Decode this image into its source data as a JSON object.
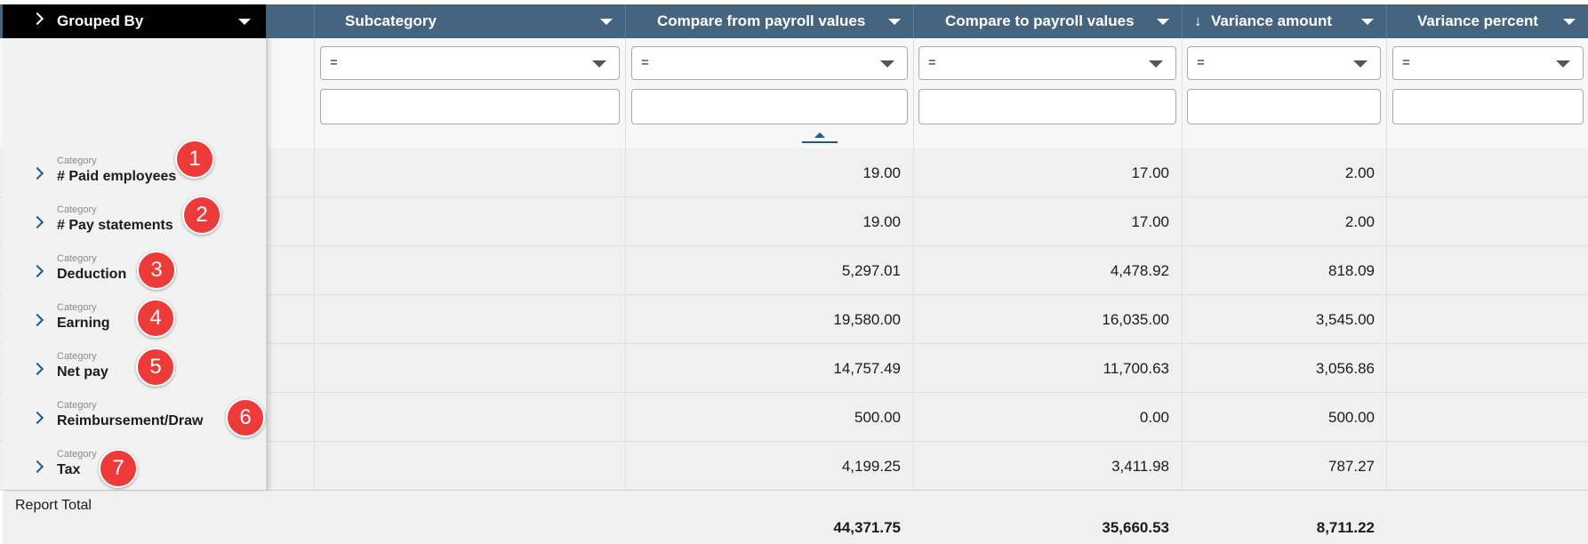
{
  "header": {
    "grouped_by": "Grouped By",
    "columns": [
      "Subcategory",
      "Compare from payroll values",
      "Compare to payroll values",
      "Variance amount",
      "Variance percent"
    ],
    "sort_arrow": "↓"
  },
  "filters": {
    "operator": "="
  },
  "rows": [
    {
      "caption": "Category",
      "name": "# Paid employees",
      "badge": "1",
      "from": "19.00",
      "to": "17.00",
      "variance": "2.00"
    },
    {
      "caption": "Category",
      "name": "# Pay statements",
      "badge": "2",
      "from": "19.00",
      "to": "17.00",
      "variance": "2.00"
    },
    {
      "caption": "Category",
      "name": "Deduction",
      "badge": "3",
      "from": "5,297.01",
      "to": "4,478.92",
      "variance": "818.09"
    },
    {
      "caption": "Category",
      "name": "Earning",
      "badge": "4",
      "from": "19,580.00",
      "to": "16,035.00",
      "variance": "3,545.00"
    },
    {
      "caption": "Category",
      "name": "Net pay",
      "badge": "5",
      "from": "14,757.49",
      "to": "11,700.63",
      "variance": "3,056.86"
    },
    {
      "caption": "Category",
      "name": "Reimbursement/Draw",
      "badge": "6",
      "from": "500.00",
      "to": "0.00",
      "variance": "500.00"
    },
    {
      "caption": "Category",
      "name": "Tax",
      "badge": "7",
      "from": "4,199.25",
      "to": "3,411.98",
      "variance": "787.27"
    }
  ],
  "totals": {
    "label": "Report Total",
    "from": "44,371.75",
    "to": "35,660.53",
    "variance": "8,711.22"
  },
  "colors": {
    "header": "#44647f",
    "grouped_header": "#000000",
    "badge": "#ef3a3a",
    "accent": "#1b5a8e"
  }
}
